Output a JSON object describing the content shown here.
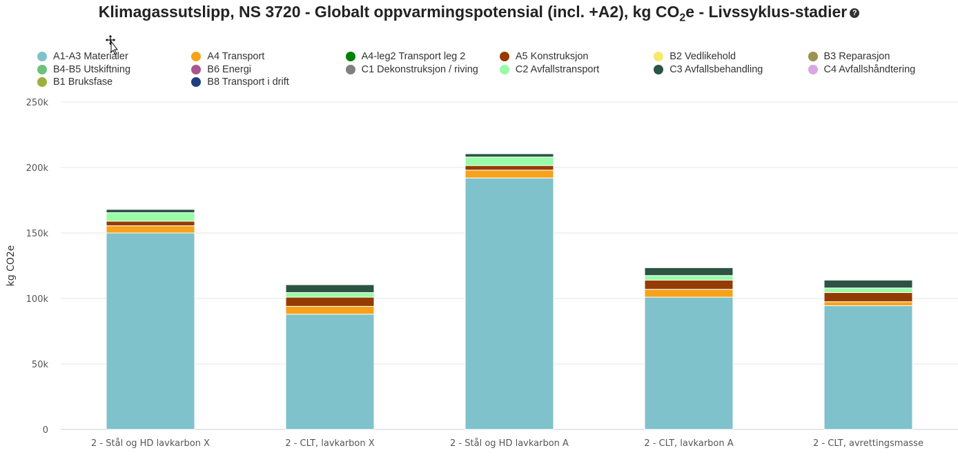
{
  "title_main": "Klimagassutslipp, NS 3720 - Globalt oppvarmingspotensial (incl. +A2), kg CO",
  "title_sub": "2",
  "title_end": "e - Livssyklus-stadier",
  "help_glyph": "?",
  "chart_data": {
    "type": "bar",
    "stacked": true,
    "ylabel": "kg CO2e",
    "ylim": [
      0,
      250000
    ],
    "yticks": [
      0,
      50000,
      100000,
      150000,
      200000,
      250000
    ],
    "ytick_labels": [
      "0",
      "50k",
      "100k",
      "150k",
      "200k",
      "250k"
    ],
    "grid": true,
    "legend_position": "top",
    "categories": [
      "2 - Stål og HD lavkarbon X",
      "2 - CLT, lavkarbon X",
      "2 - Stål og HD lavkarbon A",
      "2 - CLT, lavkarbon A",
      "2 - CLT, avrettingsmasse"
    ],
    "series": [
      {
        "name": "A1-A3 Materialer",
        "color": "#7fc2cb",
        "values": [
          150000,
          88000,
          192000,
          101000,
          94500
        ]
      },
      {
        "name": "A4 Transport",
        "color": "#f7a21b",
        "values": [
          5500,
          6000,
          6000,
          6000,
          3000
        ]
      },
      {
        "name": "A4-leg2 Transport leg 2",
        "color": "#008000",
        "values": [
          0,
          0,
          0,
          0,
          0
        ]
      },
      {
        "name": "A5 Konstruksjon",
        "color": "#943c00",
        "values": [
          3500,
          7000,
          3500,
          7000,
          7000
        ]
      },
      {
        "name": "B2 Vedlikehold",
        "color": "#f5e96a",
        "values": [
          0,
          0,
          0,
          0,
          0
        ]
      },
      {
        "name": "B3 Reparasjon",
        "color": "#9b9150",
        "values": [
          0,
          0,
          0,
          0,
          0
        ]
      },
      {
        "name": "B4-B5 Utskiftning",
        "color": "#6cc07a",
        "values": [
          0,
          0,
          0,
          0,
          0
        ]
      },
      {
        "name": "B6 Energi",
        "color": "#a9558f",
        "values": [
          0,
          0,
          0,
          0,
          0
        ]
      },
      {
        "name": "C1 Dekonstruksjon / riving",
        "color": "#808080",
        "values": [
          0,
          0,
          0,
          0,
          0
        ]
      },
      {
        "name": "C2 Avfallstransport",
        "color": "#98fca7",
        "values": [
          6500,
          3500,
          6500,
          3500,
          3500
        ]
      },
      {
        "name": "C3 Avfallsbehandling",
        "color": "#2c5443",
        "values": [
          2500,
          6000,
          2500,
          6000,
          6000
        ]
      },
      {
        "name": "C4 Avfallshåndtering",
        "color": "#d9a7e3",
        "values": [
          0,
          0,
          0,
          0,
          0
        ]
      },
      {
        "name": "B1 Bruksfase",
        "color": "#9db03c",
        "values": [
          0,
          0,
          0,
          0,
          0
        ]
      },
      {
        "name": "B8 Transport i drift",
        "color": "#1f3f7f",
        "values": [
          0,
          0,
          0,
          0,
          0
        ]
      }
    ]
  }
}
